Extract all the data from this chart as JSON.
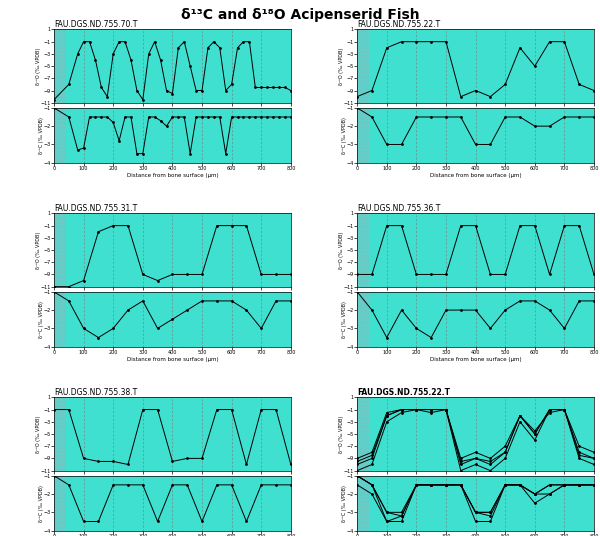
{
  "title": "δ¹³C and δ¹⁸O Acipenserid Fish",
  "bg_color": "#40E0D0",
  "strip_color": "#5ECFCA",
  "panels": [
    {
      "label": "FAU.DGS.ND.755.70.T",
      "label_bold": false,
      "o18": {
        "ylim": [
          -11,
          1
        ],
        "yticks": [
          -11,
          -9,
          -7,
          -5,
          -3,
          -1,
          1
        ],
        "x": [
          0,
          50,
          80,
          100,
          120,
          140,
          160,
          180,
          200,
          220,
          240,
          260,
          280,
          300,
          320,
          340,
          360,
          380,
          400,
          420,
          440,
          460,
          480,
          500,
          520,
          540,
          560,
          580,
          600,
          620,
          640,
          660,
          680,
          700,
          720,
          740,
          760,
          780,
          800
        ],
        "y": [
          -10.5,
          -8,
          -3,
          -1,
          -1,
          -4,
          -8.5,
          -10,
          -3,
          -1,
          -1,
          -4,
          -9,
          -10.5,
          -3,
          -1,
          -4,
          -9,
          -9.5,
          -2,
          -1,
          -5,
          -9,
          -9,
          -2,
          -1,
          -2,
          -9,
          -8,
          -2,
          -1,
          -1,
          -8.5,
          -8.5,
          -8.5,
          -8.5,
          -8.5,
          -8.5,
          -9
        ]
      },
      "c13": {
        "ylim": [
          -4,
          -1
        ],
        "yticks": [
          -4,
          -3,
          -2,
          -1
        ],
        "x": [
          0,
          50,
          80,
          100,
          120,
          140,
          160,
          180,
          200,
          220,
          240,
          260,
          280,
          300,
          320,
          340,
          360,
          380,
          400,
          420,
          440,
          460,
          480,
          500,
          520,
          540,
          560,
          580,
          600,
          620,
          640,
          660,
          680,
          700,
          720,
          740,
          760,
          780,
          800
        ],
        "y": [
          -1,
          -1.5,
          -3.3,
          -3.2,
          -1.5,
          -1.5,
          -1.5,
          -1.5,
          -1.8,
          -2.8,
          -1.5,
          -1.5,
          -3.5,
          -3.5,
          -1.5,
          -1.5,
          -1.7,
          -2,
          -1.5,
          -1.5,
          -1.5,
          -3.5,
          -1.5,
          -1.5,
          -1.5,
          -1.5,
          -1.5,
          -3.5,
          -1.5,
          -1.5,
          -1.5,
          -1.5,
          -1.5,
          -1.5,
          -1.5,
          -1.5,
          -1.5,
          -1.5,
          -1.5
        ]
      }
    },
    {
      "label": "FAU.DGS.ND.755.22.T",
      "label_bold": false,
      "o18": {
        "ylim": [
          -11,
          1
        ],
        "yticks": [
          -11,
          -9,
          -7,
          -5,
          -3,
          -1,
          1
        ],
        "x": [
          0,
          50,
          100,
          150,
          200,
          250,
          300,
          350,
          400,
          450,
          500,
          550,
          600,
          650,
          700,
          750,
          800
        ],
        "y": [
          -10,
          -9,
          -2,
          -1,
          -1,
          -1,
          -1,
          -10,
          -9,
          -10,
          -8,
          -2,
          -5,
          -1,
          -1,
          -8,
          -9
        ]
      },
      "c13": {
        "ylim": [
          -4,
          -1
        ],
        "yticks": [
          -4,
          -3,
          -2,
          -1
        ],
        "x": [
          0,
          50,
          100,
          150,
          200,
          250,
          300,
          350,
          400,
          450,
          500,
          550,
          600,
          650,
          700,
          750,
          800
        ],
        "y": [
          -1,
          -1.5,
          -3,
          -3,
          -1.5,
          -1.5,
          -1.5,
          -1.5,
          -3,
          -3,
          -1.5,
          -1.5,
          -2,
          -2,
          -1.5,
          -1.5,
          -1.5
        ]
      }
    },
    {
      "label": "FAU.DGS.ND.755.31.T",
      "label_bold": false,
      "o18": {
        "ylim": [
          -11,
          1
        ],
        "yticks": [
          -11,
          -9,
          -7,
          -5,
          -3,
          -1,
          1
        ],
        "x": [
          0,
          50,
          100,
          150,
          200,
          250,
          300,
          350,
          400,
          450,
          500,
          550,
          600,
          650,
          700,
          750,
          800
        ],
        "y": [
          -11,
          -11,
          -10,
          -2,
          -1,
          -1,
          -9,
          -10,
          -9,
          -9,
          -9,
          -1,
          -1,
          -1,
          -9,
          -9,
          -9
        ]
      },
      "c13": {
        "ylim": [
          -4,
          -1
        ],
        "yticks": [
          -4,
          -3,
          -2,
          -1
        ],
        "x": [
          0,
          50,
          100,
          150,
          200,
          250,
          300,
          350,
          400,
          450,
          500,
          550,
          600,
          650,
          700,
          750,
          800
        ],
        "y": [
          -1,
          -1.5,
          -3,
          -3.5,
          -3,
          -2,
          -1.5,
          -3,
          -2.5,
          -2,
          -1.5,
          -1.5,
          -1.5,
          -2,
          -3,
          -1.5,
          -1.5
        ]
      }
    },
    {
      "label": "FAU.DGS.ND.755.36.T",
      "label_bold": false,
      "o18": {
        "ylim": [
          -11,
          1
        ],
        "yticks": [
          -11,
          -9,
          -7,
          -5,
          -3,
          -1,
          1
        ],
        "x": [
          0,
          50,
          100,
          150,
          200,
          250,
          300,
          350,
          400,
          450,
          500,
          550,
          600,
          650,
          700,
          750,
          800
        ],
        "y": [
          -9,
          -9,
          -1,
          -1,
          -9,
          -9,
          -9,
          -1,
          -1,
          -9,
          -9,
          -1,
          -1,
          -9,
          -1,
          -1,
          -9
        ]
      },
      "c13": {
        "ylim": [
          -4,
          -1
        ],
        "yticks": [
          -4,
          -3,
          -2,
          -1
        ],
        "x": [
          0,
          50,
          100,
          150,
          200,
          250,
          300,
          350,
          400,
          450,
          500,
          550,
          600,
          650,
          700,
          750,
          800
        ],
        "y": [
          -1,
          -2,
          -3.5,
          -2,
          -3,
          -3.5,
          -2,
          -2,
          -2,
          -3,
          -2,
          -1.5,
          -1.5,
          -2,
          -3,
          -1.5,
          -1.5
        ]
      }
    },
    {
      "label": "FAU.DGS.ND.755.38.T",
      "label_bold": false,
      "o18": {
        "ylim": [
          -11,
          1
        ],
        "yticks": [
          -11,
          -9,
          -7,
          -5,
          -3,
          -1,
          1
        ],
        "x": [
          0,
          50,
          100,
          150,
          200,
          250,
          300,
          350,
          400,
          450,
          500,
          550,
          600,
          650,
          700,
          750,
          800
        ],
        "y": [
          -1,
          -1,
          -9,
          -9.5,
          -9.5,
          -10,
          -1,
          -1,
          -9.5,
          -9,
          -9,
          -1,
          -1,
          -10,
          -1,
          -1,
          -10
        ]
      },
      "c13": {
        "ylim": [
          -4,
          -1
        ],
        "yticks": [
          -4,
          -3,
          -2,
          -1
        ],
        "x": [
          0,
          50,
          100,
          150,
          200,
          250,
          300,
          350,
          400,
          450,
          500,
          550,
          600,
          650,
          700,
          750,
          800
        ],
        "y": [
          -1,
          -1.5,
          -3.5,
          -3.5,
          -1.5,
          -1.5,
          -1.5,
          -3.5,
          -1.5,
          -1.5,
          -3.5,
          -1.5,
          -1.5,
          -3.5,
          -1.5,
          -1.5,
          -1.5
        ]
      }
    },
    {
      "label": "FAU.DGS.ND.755.22.T",
      "label_bold": true,
      "o18": {
        "ylim": [
          -11,
          1
        ],
        "yticks": [
          -11,
          -9,
          -7,
          -5,
          -3,
          -1,
          1
        ],
        "x": [
          0,
          50,
          100,
          150,
          200,
          250,
          300,
          350,
          400,
          450,
          500,
          550,
          600,
          650,
          700,
          750,
          800
        ],
        "y_multi": [
          [
            -10,
            -9,
            -2,
            -1,
            -1,
            -1,
            -1,
            -10,
            -9,
            -10,
            -8,
            -2,
            -5,
            -1,
            -1,
            -8,
            -9
          ],
          [
            -9,
            -8,
            -1.5,
            -1,
            -1,
            -1.5,
            -1,
            -9,
            -8,
            -9,
            -7,
            -2,
            -4.5,
            -1.5,
            -1,
            -7,
            -8
          ],
          [
            -11,
            -10,
            -3,
            -1.5,
            -1,
            -1,
            -1,
            -11,
            -10,
            -11,
            -9,
            -3,
            -6,
            -1,
            -1,
            -9,
            -10
          ],
          [
            -9.5,
            -8.5,
            -2,
            -1,
            -1,
            -1,
            -1,
            -9.5,
            -9,
            -9.5,
            -8,
            -2,
            -5,
            -1,
            -1,
            -8.5,
            -9
          ]
        ]
      },
      "c13": {
        "ylim": [
          -4,
          -1
        ],
        "yticks": [
          -4,
          -3,
          -2,
          -1
        ],
        "x": [
          0,
          50,
          100,
          150,
          200,
          250,
          300,
          350,
          400,
          450,
          500,
          550,
          600,
          650,
          700,
          750,
          800
        ],
        "y_multi": [
          [
            -1,
            -1.5,
            -3,
            -3.2,
            -1.5,
            -1.5,
            -1.5,
            -1.5,
            -3,
            -3.2,
            -1.5,
            -1.5,
            -2,
            -2,
            -1.5,
            -1.5,
            -1.5
          ],
          [
            -1.5,
            -2,
            -3.5,
            -3.5,
            -1.5,
            -1.5,
            -1.5,
            -1.5,
            -3.5,
            -3.5,
            -1.5,
            -1.5,
            -2.5,
            -2,
            -1.5,
            -1.5,
            -1.5
          ],
          [
            -1,
            -1.5,
            -3,
            -3,
            -1.5,
            -1.5,
            -1.5,
            -1.5,
            -3,
            -3,
            -1.5,
            -1.5,
            -2,
            -1.5,
            -1.5,
            -1.5,
            -1.5
          ],
          [
            -1,
            -1.5,
            -3.5,
            -3.2,
            -1.5,
            -1.5,
            -1.5,
            -1.5,
            -3,
            -3,
            -1.5,
            -1.5,
            -2,
            -1.5,
            -1.5,
            -1.5,
            -1.5
          ]
        ]
      }
    }
  ],
  "xlabel": "Distance from bone surface (μm)",
  "ylabel_o18": "δ¹⁸O (‰ VPDB)",
  "ylabel_c13": "δ¹³C (‰ VPDB)",
  "xlim": [
    0,
    800
  ],
  "xticks": [
    0,
    100,
    200,
    300,
    400,
    500,
    600,
    700,
    800
  ]
}
